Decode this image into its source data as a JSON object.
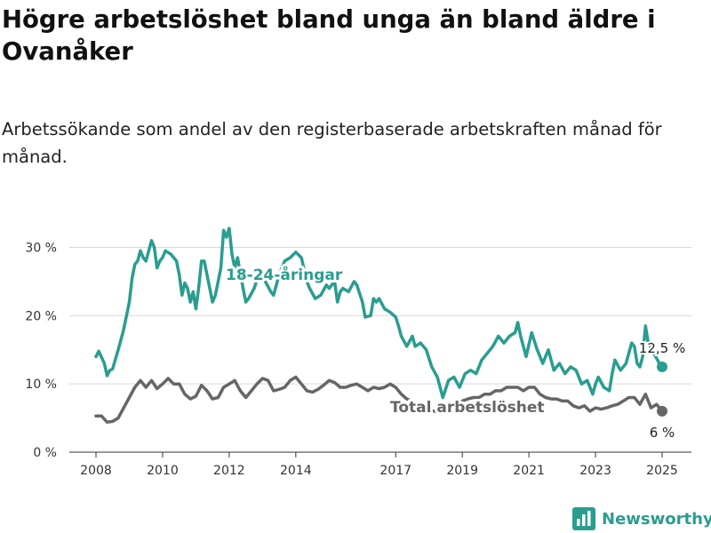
{
  "chart_data": {
    "type": "line",
    "title": "Högre arbetslöshet bland unga än bland äldre i Ovanåker",
    "subtitle": "Arbetssökande som andel av den registerbaserade arbetskraften månad för månad.",
    "x_ticks": [
      "2008",
      "2010",
      "2012",
      "2014",
      "2017",
      "2019",
      "2021",
      "2023",
      "2025"
    ],
    "y_ticks": [
      "0 %",
      "10 %",
      "20 %",
      "30 %"
    ],
    "ylim": [
      0,
      33
    ],
    "x_range": [
      "2008-01",
      "2025-01"
    ],
    "grid": true,
    "series": [
      {
        "name": "18-24-åringar",
        "color": "#2a9d8f",
        "end_label": "12,5 %",
        "points": [
          [
            "2008-01",
            14.0
          ],
          [
            "2008-02",
            14.8
          ],
          [
            "2008-04",
            13.0
          ],
          [
            "2008-05",
            11.2
          ],
          [
            "2008-06",
            12.0
          ],
          [
            "2008-07",
            12.2
          ],
          [
            "2008-09",
            15.0
          ],
          [
            "2008-11",
            18.0
          ],
          [
            "2009-01",
            22.0
          ],
          [
            "2009-02",
            25.5
          ],
          [
            "2009-03",
            27.5
          ],
          [
            "2009-04",
            28.0
          ],
          [
            "2009-05",
            29.5
          ],
          [
            "2009-06",
            28.5
          ],
          [
            "2009-07",
            28.0
          ],
          [
            "2009-09",
            31.0
          ],
          [
            "2009-10",
            30.0
          ],
          [
            "2009-11",
            27.0
          ],
          [
            "2009-12",
            28.0
          ],
          [
            "2010-01",
            28.5
          ],
          [
            "2010-02",
            29.5
          ],
          [
            "2010-04",
            29.0
          ],
          [
            "2010-06",
            28.0
          ],
          [
            "2010-07",
            26.0
          ],
          [
            "2010-08",
            23.0
          ],
          [
            "2010-09",
            24.8
          ],
          [
            "2010-10",
            24.0
          ],
          [
            "2010-11",
            22.0
          ],
          [
            "2010-12",
            23.5
          ],
          [
            "2011-01",
            21.0
          ],
          [
            "2011-02",
            24.0
          ],
          [
            "2011-03",
            28.0
          ],
          [
            "2011-04",
            28.0
          ],
          [
            "2011-05",
            26.0
          ],
          [
            "2011-07",
            22.0
          ],
          [
            "2011-08",
            23.0
          ],
          [
            "2011-10",
            27.0
          ],
          [
            "2011-11",
            32.5
          ],
          [
            "2011-12",
            31.5
          ],
          [
            "2012-01",
            32.8
          ],
          [
            "2012-02",
            29.0
          ],
          [
            "2012-03",
            27.0
          ],
          [
            "2012-04",
            28.5
          ],
          [
            "2012-06",
            24.0
          ],
          [
            "2012-07",
            22.0
          ],
          [
            "2012-08",
            22.5
          ],
          [
            "2012-10",
            24.0
          ],
          [
            "2012-12",
            26.5
          ],
          [
            "2013-02",
            25.0
          ],
          [
            "2013-04",
            23.5
          ],
          [
            "2013-05",
            23.0
          ],
          [
            "2013-07",
            26.0
          ],
          [
            "2013-09",
            28.0
          ],
          [
            "2013-11",
            28.5
          ],
          [
            "2014-01",
            29.3
          ],
          [
            "2014-03",
            28.5
          ],
          [
            "2014-05",
            25.0
          ],
          [
            "2014-06",
            24.0
          ],
          [
            "2014-08",
            22.5
          ],
          [
            "2014-10",
            23.0
          ],
          [
            "2014-12",
            24.5
          ],
          [
            "2015-01",
            24.0
          ],
          [
            "2015-03",
            25.0
          ],
          [
            "2015-04",
            22.0
          ],
          [
            "2015-05",
            23.5
          ],
          [
            "2015-06",
            24.0
          ],
          [
            "2015-08",
            23.5
          ],
          [
            "2015-10",
            25.0
          ],
          [
            "2015-11",
            24.5
          ],
          [
            "2016-01",
            22.0
          ],
          [
            "2016-02",
            19.8
          ],
          [
            "2016-04",
            20.0
          ],
          [
            "2016-05",
            22.5
          ],
          [
            "2016-06",
            22.0
          ],
          [
            "2016-07",
            22.5
          ],
          [
            "2016-09",
            21.0
          ],
          [
            "2016-11",
            20.5
          ],
          [
            "2017-01",
            19.8
          ],
          [
            "2017-02",
            18.5
          ],
          [
            "2017-03",
            17.0
          ],
          [
            "2017-05",
            15.5
          ],
          [
            "2017-07",
            17.0
          ],
          [
            "2017-08",
            15.5
          ],
          [
            "2017-10",
            16.0
          ],
          [
            "2017-12",
            15.0
          ],
          [
            "2018-02",
            12.5
          ],
          [
            "2018-04",
            11.0
          ],
          [
            "2018-06",
            8.0
          ],
          [
            "2018-08",
            10.5
          ],
          [
            "2018-10",
            11.0
          ],
          [
            "2018-12",
            9.5
          ],
          [
            "2019-02",
            11.5
          ],
          [
            "2019-04",
            12.0
          ],
          [
            "2019-06",
            11.5
          ],
          [
            "2019-08",
            13.5
          ],
          [
            "2019-10",
            14.5
          ],
          [
            "2019-12",
            15.5
          ],
          [
            "2020-02",
            17.0
          ],
          [
            "2020-04",
            16.0
          ],
          [
            "2020-06",
            17.0
          ],
          [
            "2020-08",
            17.5
          ],
          [
            "2020-09",
            19.0
          ],
          [
            "2020-10",
            17.0
          ],
          [
            "2020-12",
            14.0
          ],
          [
            "2021-02",
            17.5
          ],
          [
            "2021-04",
            15.0
          ],
          [
            "2021-06",
            13.0
          ],
          [
            "2021-08",
            15.0
          ],
          [
            "2021-10",
            12.0
          ],
          [
            "2021-12",
            13.0
          ],
          [
            "2022-02",
            11.5
          ],
          [
            "2022-04",
            12.5
          ],
          [
            "2022-06",
            12.0
          ],
          [
            "2022-08",
            10.0
          ],
          [
            "2022-10",
            10.5
          ],
          [
            "2022-12",
            8.5
          ],
          [
            "2023-01",
            10.0
          ],
          [
            "2023-02",
            11.0
          ],
          [
            "2023-04",
            9.5
          ],
          [
            "2023-06",
            9.0
          ],
          [
            "2023-07",
            11.5
          ],
          [
            "2023-08",
            13.5
          ],
          [
            "2023-10",
            12.0
          ],
          [
            "2023-12",
            13.0
          ],
          [
            "2024-02",
            16.0
          ],
          [
            "2024-03",
            15.5
          ],
          [
            "2024-04",
            13.0
          ],
          [
            "2024-05",
            12.5
          ],
          [
            "2024-06",
            14.0
          ],
          [
            "2024-07",
            18.5
          ],
          [
            "2024-08",
            16.0
          ],
          [
            "2024-10",
            14.5
          ],
          [
            "2024-12",
            13.0
          ],
          [
            "2025-01",
            12.5
          ]
        ]
      },
      {
        "name": "Total arbetslöshet",
        "color": "#666666",
        "end_label": "6 %",
        "points": [
          [
            "2008-01",
            5.3
          ],
          [
            "2008-03",
            5.3
          ],
          [
            "2008-05",
            4.4
          ],
          [
            "2008-07",
            4.5
          ],
          [
            "2008-09",
            5.0
          ],
          [
            "2008-11",
            6.5
          ],
          [
            "2009-01",
            8.0
          ],
          [
            "2009-03",
            9.5
          ],
          [
            "2009-05",
            10.5
          ],
          [
            "2009-07",
            9.5
          ],
          [
            "2009-09",
            10.5
          ],
          [
            "2009-11",
            9.3
          ],
          [
            "2010-01",
            10.0
          ],
          [
            "2010-03",
            10.8
          ],
          [
            "2010-05",
            10.0
          ],
          [
            "2010-07",
            10.0
          ],
          [
            "2010-09",
            8.5
          ],
          [
            "2010-11",
            7.8
          ],
          [
            "2011-01",
            8.2
          ],
          [
            "2011-03",
            9.8
          ],
          [
            "2011-05",
            9.0
          ],
          [
            "2011-07",
            7.8
          ],
          [
            "2011-09",
            8.0
          ],
          [
            "2011-11",
            9.5
          ],
          [
            "2012-01",
            10.0
          ],
          [
            "2012-03",
            10.5
          ],
          [
            "2012-05",
            9.0
          ],
          [
            "2012-07",
            8.0
          ],
          [
            "2012-09",
            9.0
          ],
          [
            "2012-11",
            10.0
          ],
          [
            "2013-01",
            10.8
          ],
          [
            "2013-03",
            10.5
          ],
          [
            "2013-05",
            9.0
          ],
          [
            "2013-07",
            9.2
          ],
          [
            "2013-09",
            9.5
          ],
          [
            "2013-11",
            10.5
          ],
          [
            "2014-01",
            11.0
          ],
          [
            "2014-03",
            10.0
          ],
          [
            "2014-05",
            9.0
          ],
          [
            "2014-07",
            8.8
          ],
          [
            "2014-09",
            9.2
          ],
          [
            "2014-11",
            9.8
          ],
          [
            "2015-01",
            10.5
          ],
          [
            "2015-03",
            10.2
          ],
          [
            "2015-05",
            9.5
          ],
          [
            "2015-07",
            9.5
          ],
          [
            "2015-09",
            9.8
          ],
          [
            "2015-11",
            10.0
          ],
          [
            "2016-01",
            9.5
          ],
          [
            "2016-03",
            9.0
          ],
          [
            "2016-05",
            9.5
          ],
          [
            "2016-07",
            9.3
          ],
          [
            "2016-09",
            9.5
          ],
          [
            "2016-11",
            10.0
          ],
          [
            "2017-01",
            9.5
          ],
          [
            "2017-03",
            8.5
          ],
          [
            "2017-05",
            7.8
          ],
          [
            "2017-07",
            7.5
          ],
          [
            "2017-09",
            7.0
          ],
          [
            "2017-11",
            6.5
          ],
          [
            "2018-01",
            6.2
          ],
          [
            "2018-03",
            6.0
          ],
          [
            "2018-05",
            5.8
          ],
          [
            "2018-07",
            5.8
          ],
          [
            "2018-09",
            6.5
          ],
          [
            "2018-11",
            7.0
          ],
          [
            "2019-01",
            7.5
          ],
          [
            "2019-03",
            7.8
          ],
          [
            "2019-05",
            8.0
          ],
          [
            "2019-07",
            8.0
          ],
          [
            "2019-09",
            8.5
          ],
          [
            "2019-11",
            8.5
          ],
          [
            "2020-01",
            9.0
          ],
          [
            "2020-03",
            9.0
          ],
          [
            "2020-05",
            9.5
          ],
          [
            "2020-07",
            9.5
          ],
          [
            "2020-09",
            9.5
          ],
          [
            "2020-11",
            9.0
          ],
          [
            "2021-01",
            9.5
          ],
          [
            "2021-03",
            9.5
          ],
          [
            "2021-05",
            8.5
          ],
          [
            "2021-07",
            8.0
          ],
          [
            "2021-09",
            7.8
          ],
          [
            "2021-11",
            7.8
          ],
          [
            "2022-01",
            7.5
          ],
          [
            "2022-03",
            7.5
          ],
          [
            "2022-05",
            6.8
          ],
          [
            "2022-07",
            6.5
          ],
          [
            "2022-09",
            6.8
          ],
          [
            "2022-11",
            6.0
          ],
          [
            "2023-01",
            6.5
          ],
          [
            "2023-03",
            6.3
          ],
          [
            "2023-05",
            6.5
          ],
          [
            "2023-07",
            6.8
          ],
          [
            "2023-09",
            7.0
          ],
          [
            "2023-11",
            7.5
          ],
          [
            "2024-01",
            8.0
          ],
          [
            "2024-03",
            8.0
          ],
          [
            "2024-05",
            7.0
          ],
          [
            "2024-07",
            8.5
          ],
          [
            "2024-09",
            6.5
          ],
          [
            "2024-11",
            7.0
          ],
          [
            "2025-01",
            6.0
          ]
        ]
      }
    ]
  },
  "brand": {
    "name": "Newsworthy",
    "icon": "bar-chart-logo-icon",
    "color": "#2a9d8f"
  }
}
